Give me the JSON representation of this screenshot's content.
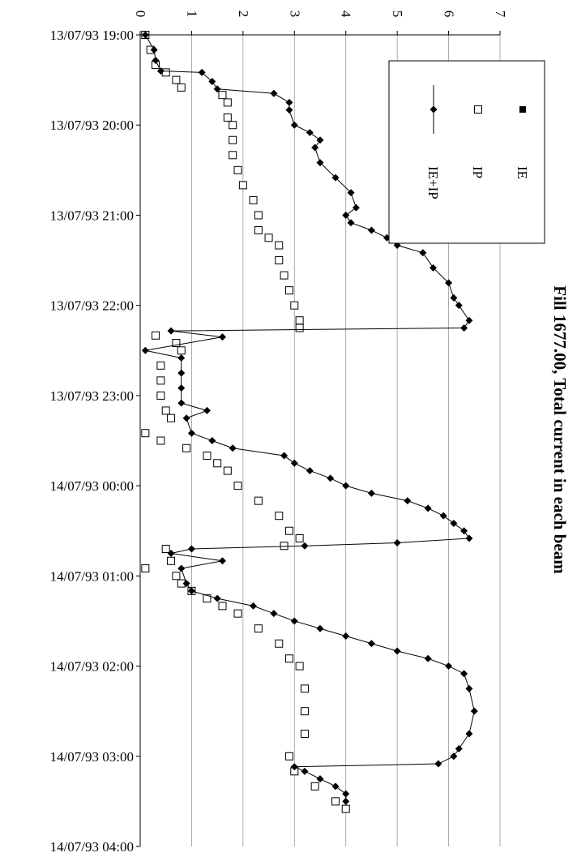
{
  "chart_data": {
    "type": "line",
    "title": "Fill 1677.00, Total current in each beam",
    "xlim": [
      "13/07/93 19:00",
      "14/07/93 04:00"
    ],
    "xticks": [
      "13/07/93 19:00",
      "13/07/93 20:00",
      "13/07/93 21:00",
      "13/07/93 22:00",
      "13/07/93 23:00",
      "14/07/93 00:00",
      "14/07/93 01:00",
      "14/07/93 02:00",
      "14/07/93 03:00",
      "14/07/93 04:00"
    ],
    "ylim": [
      0,
      7
    ],
    "yticks": [
      0,
      1,
      2,
      3,
      4,
      5,
      6,
      7
    ],
    "grid": true,
    "series": [
      {
        "name": "IE",
        "color": "#000000",
        "marker": "filled-square",
        "line": false,
        "x": [],
        "values": []
      },
      {
        "name": "IP",
        "color": "#000000",
        "marker": "open-square",
        "line": false,
        "x": [
          "13/07/93 19:00",
          "13/07/93 19:10",
          "13/07/93 19:20",
          "13/07/93 19:25",
          "13/07/93 19:30",
          "13/07/93 19:35",
          "13/07/93 19:40",
          "13/07/93 19:45",
          "13/07/93 19:55",
          "13/07/93 20:00",
          "13/07/93 20:10",
          "13/07/93 20:20",
          "13/07/93 20:30",
          "13/07/93 20:40",
          "13/07/93 20:50",
          "13/07/93 21:00",
          "13/07/93 21:10",
          "13/07/93 21:15",
          "13/07/93 21:20",
          "13/07/93 21:30",
          "13/07/93 21:40",
          "13/07/93 21:50",
          "13/07/93 22:00",
          "13/07/93 22:10",
          "13/07/93 22:15",
          "13/07/93 22:20",
          "13/07/93 22:25",
          "13/07/93 22:30",
          "13/07/93 22:40",
          "13/07/93 22:50",
          "13/07/93 23:00",
          "13/07/93 23:10",
          "13/07/93 23:15",
          "13/07/93 23:25",
          "13/07/93 23:30",
          "13/07/93 23:35",
          "13/07/93 23:40",
          "13/07/93 23:45",
          "13/07/93 23:50",
          "14/07/93 00:00",
          "14/07/93 00:10",
          "14/07/93 00:20",
          "14/07/93 00:30",
          "14/07/93 00:35",
          "14/07/93 00:40",
          "14/07/93 00:42",
          "14/07/93 00:50",
          "14/07/93 00:55",
          "14/07/93 01:00",
          "14/07/93 01:05",
          "14/07/93 01:10",
          "14/07/93 01:15",
          "14/07/93 01:20",
          "14/07/93 01:25",
          "14/07/93 01:35",
          "14/07/93 01:45",
          "14/07/93 01:55",
          "14/07/93 02:00",
          "14/07/93 02:15",
          "14/07/93 02:30",
          "14/07/93 02:45",
          "14/07/93 03:00",
          "14/07/93 03:10",
          "14/07/93 03:20",
          "14/07/93 03:30",
          "14/07/93 03:35"
        ],
        "values": [
          0.1,
          0.2,
          0.3,
          0.5,
          0.7,
          0.8,
          1.6,
          1.7,
          1.7,
          1.8,
          1.8,
          1.8,
          1.9,
          2.0,
          2.2,
          2.3,
          2.3,
          2.5,
          2.7,
          2.7,
          2.8,
          2.9,
          3.0,
          3.1,
          3.1,
          0.3,
          0.7,
          0.8,
          0.4,
          0.4,
          0.4,
          0.5,
          0.6,
          0.1,
          0.4,
          0.9,
          1.3,
          1.5,
          1.7,
          1.9,
          2.3,
          2.7,
          2.9,
          3.1,
          2.8,
          0.5,
          0.6,
          0.1,
          0.7,
          0.8,
          1.0,
          1.3,
          1.6,
          1.9,
          2.3,
          2.7,
          2.9,
          3.1,
          3.2,
          3.2,
          3.2,
          2.9,
          3.0,
          3.4,
          3.8,
          4.0
        ]
      },
      {
        "name": "IE+IP",
        "color": "#000000",
        "marker": "diamond",
        "line": true,
        "x": [
          "13/07/93 19:00",
          "13/07/93 19:10",
          "13/07/93 19:17",
          "13/07/93 19:24",
          "13/07/93 19:25",
          "13/07/93 19:31",
          "13/07/93 19:36",
          "13/07/93 19:39",
          "13/07/93 19:45",
          "13/07/93 19:50",
          "13/07/93 20:00",
          "13/07/93 20:05",
          "13/07/93 20:10",
          "13/07/93 20:15",
          "13/07/93 20:25",
          "13/07/93 20:35",
          "13/07/93 20:45",
          "13/07/93 20:55",
          "13/07/93 21:00",
          "13/07/93 21:05",
          "13/07/93 21:10",
          "13/07/93 21:15",
          "13/07/93 21:20",
          "13/07/93 21:25",
          "13/07/93 21:35",
          "13/07/93 21:45",
          "13/07/93 21:55",
          "13/07/93 22:00",
          "13/07/93 22:10",
          "13/07/93 22:15",
          "13/07/93 22:17",
          "13/07/93 22:21",
          "13/07/93 22:30",
          "13/07/93 22:35",
          "13/07/93 22:45",
          "13/07/93 22:55",
          "13/07/93 23:05",
          "13/07/93 23:10",
          "13/07/93 23:15",
          "13/07/93 23:25",
          "13/07/93 23:30",
          "13/07/93 23:35",
          "13/07/93 23:40",
          "13/07/93 23:45",
          "13/07/93 23:50",
          "13/07/93 23:55",
          "14/07/93 00:00",
          "14/07/93 00:05",
          "14/07/93 00:10",
          "14/07/93 00:15",
          "14/07/93 00:20",
          "14/07/93 00:25",
          "14/07/93 00:30",
          "14/07/93 00:35",
          "14/07/93 00:38",
          "14/07/93 00:40",
          "14/07/93 00:42",
          "14/07/93 00:45",
          "14/07/93 00:50",
          "14/07/93 00:55",
          "14/07/93 01:05",
          "14/07/93 01:10",
          "14/07/93 01:15",
          "14/07/93 01:20",
          "14/07/93 01:25",
          "14/07/93 01:30",
          "14/07/93 01:35",
          "14/07/93 01:40",
          "14/07/93 01:45",
          "14/07/93 01:50",
          "14/07/93 01:55",
          "14/07/93 02:00",
          "14/07/93 02:05",
          "14/07/93 02:15",
          "14/07/93 02:30",
          "14/07/93 02:45",
          "14/07/93 02:55",
          "14/07/93 03:00",
          "14/07/93 03:05",
          "14/07/93 03:07",
          "14/07/93 03:10",
          "14/07/93 03:15",
          "14/07/93 03:20",
          "14/07/93 03:25",
          "14/07/93 03:30"
        ],
        "values": [
          0.1,
          0.27,
          0.3,
          0.4,
          1.2,
          1.4,
          1.5,
          2.6,
          2.9,
          2.9,
          3.0,
          3.3,
          3.5,
          3.4,
          3.5,
          3.8,
          4.1,
          4.2,
          4.0,
          4.1,
          4.5,
          4.8,
          5.0,
          5.5,
          5.7,
          6.0,
          6.1,
          6.2,
          6.4,
          6.3,
          0.6,
          1.6,
          0.1,
          0.8,
          0.8,
          0.8,
          0.8,
          1.3,
          0.9,
          1.0,
          1.4,
          1.8,
          2.8,
          3.0,
          3.3,
          3.7,
          4.0,
          4.5,
          5.2,
          5.6,
          5.9,
          6.1,
          6.3,
          6.4,
          5.0,
          3.2,
          1.0,
          0.6,
          1.6,
          0.8,
          0.9,
          1.0,
          1.5,
          2.2,
          2.6,
          3.0,
          3.5,
          4.0,
          4.5,
          5.0,
          5.6,
          6.0,
          6.3,
          6.4,
          6.5,
          6.4,
          6.2,
          6.1,
          5.8,
          3.0,
          3.2,
          3.5,
          3.8,
          4.0,
          4.0
        ]
      }
    ]
  }
}
